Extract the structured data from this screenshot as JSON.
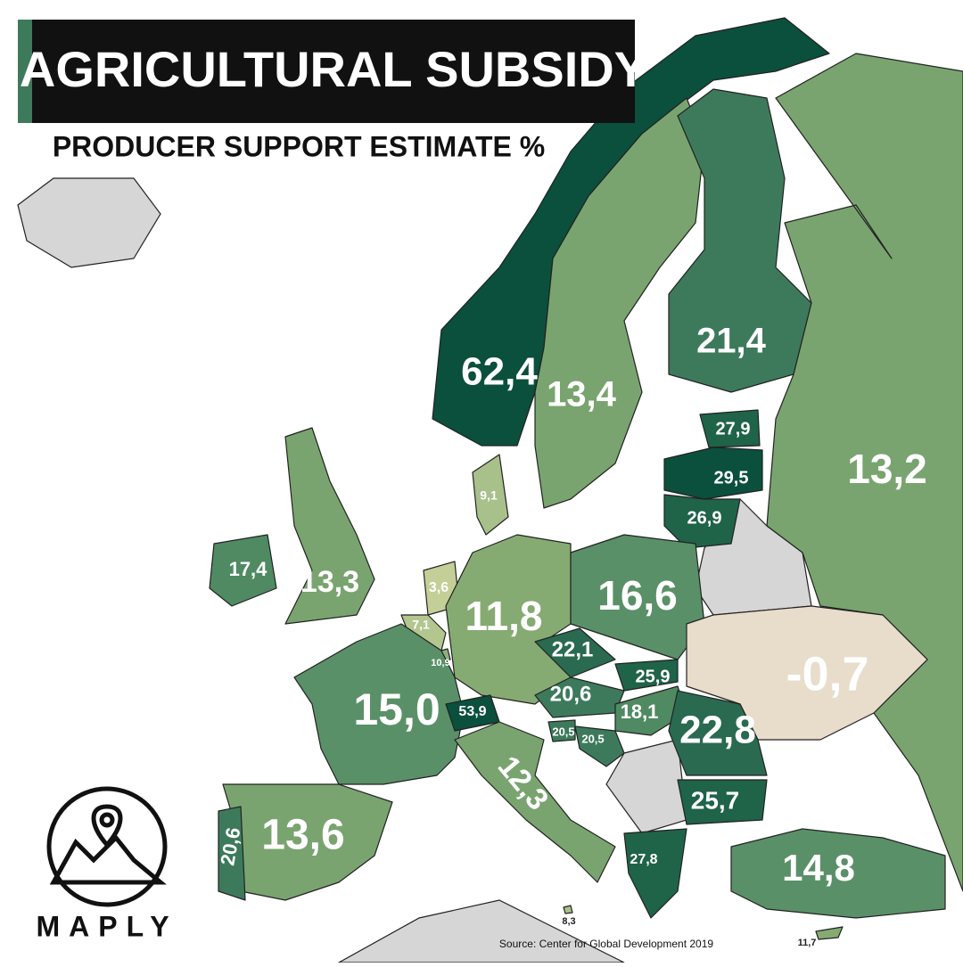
{
  "header": {
    "title": "AGRICULTURAL SUBSIDY",
    "subtitle": "PRODUCER SUPPORT ESTIMATE %"
  },
  "regions": [
    {
      "label": "62,4",
      "color": "#0b4f3d"
    },
    {
      "label": "13,4",
      "color": "#79a46f"
    },
    {
      "label": "21,4",
      "color": "#3d7a5c"
    },
    {
      "label": "13,2",
      "color": "#79a46f"
    },
    {
      "label": "27,9",
      "color": "#1f6349"
    },
    {
      "label": "29,5",
      "color": "#0b4f3d"
    },
    {
      "label": "26,9",
      "color": "#1f6349"
    },
    {
      "label": "9,1",
      "color": "#a8c08a"
    },
    {
      "label": "17,4",
      "color": "#4f8a62"
    },
    {
      "label": "13,3",
      "color": "#79a46f"
    },
    {
      "label": "3,6",
      "color": "#c3cf96"
    },
    {
      "label": "7,1",
      "color": "#b2c68e"
    },
    {
      "label": "10,9",
      "color": "#8fb078"
    },
    {
      "label": "11,8",
      "color": "#86ab72"
    },
    {
      "label": "16,6",
      "color": "#5a9068"
    },
    {
      "label": "-0,7",
      "color": "#e8dccb"
    },
    {
      "label": "15,0",
      "color": "#5a9068"
    },
    {
      "label": "53,9",
      "color": "#0b4f3d"
    },
    {
      "label": "22,1",
      "color": "#2a6a50"
    },
    {
      "label": "25,9",
      "color": "#1f6349"
    },
    {
      "label": "20,6",
      "color": "#3d7a5c"
    },
    {
      "label": "18,1",
      "color": "#4f8a62"
    },
    {
      "label": "20,5",
      "color": "#3d7a5c"
    },
    {
      "label": "20,5",
      "color": "#3d7a5c"
    },
    {
      "label": "22,8",
      "color": "#2a6a50"
    },
    {
      "label": "25,7",
      "color": "#1f6349"
    },
    {
      "label": "12,3",
      "color": "#79a46f"
    },
    {
      "label": "13,6",
      "color": "#79a46f"
    },
    {
      "label": "20,6",
      "color": "#3d7a5c"
    },
    {
      "label": "27,8",
      "color": "#1f6349"
    },
    {
      "label": "14,8",
      "color": "#5a9068"
    },
    {
      "label": "8,3",
      "color": "#a8c08a"
    },
    {
      "label": "11,7",
      "color": "#86ab72"
    }
  ],
  "logo": "MAPLY",
  "source": "Source: Center for Global Development 2019"
}
